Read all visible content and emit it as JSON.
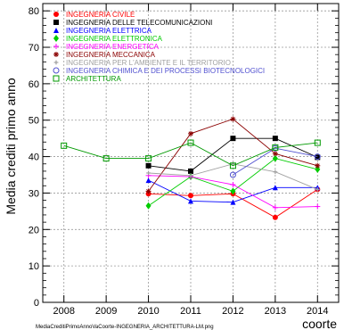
{
  "chart_data": {
    "type": "line",
    "title": "",
    "xlabel": "coorte",
    "ylabel": "Media crediti primo anno",
    "xlim": [
      2007.5,
      2014.5
    ],
    "ylim": [
      0,
      82
    ],
    "x_ticks": [
      2008,
      2009,
      2010,
      2011,
      2012,
      2013,
      2014
    ],
    "y_ticks": [
      0,
      10,
      20,
      30,
      40,
      50,
      60,
      70,
      80
    ],
    "grid": true,
    "legend_position": "top-left",
    "footer": "MediaCreditiPrimoAnnoVaCoorte-INGEGNERIA_ARCHITETTURA-LM.png",
    "series": [
      {
        "name": "INGEGNERIA CIVILE",
        "color": "#ff0000",
        "marker": "circle-filled",
        "x": [
          2010,
          2011,
          2012,
          2013,
          2014
        ],
        "y": [
          29.8,
          29.3,
          29.8,
          23.3,
          31.0
        ]
      },
      {
        "name": "INGEGNERIA DELLE TELECOMUNICAZIONI",
        "color": "#000000",
        "marker": "square-filled",
        "x": [
          2010,
          2011,
          2012,
          2013,
          2014
        ],
        "y": [
          37.5,
          36.0,
          45.0,
          45.0,
          39.8
        ]
      },
      {
        "name": "INGEGNERIA ELETTRICA",
        "color": "#0000ff",
        "marker": "triangle-up",
        "x": [
          2010,
          2011,
          2012,
          2013,
          2014
        ],
        "y": [
          33.5,
          27.8,
          27.5,
          31.5,
          31.5
        ]
      },
      {
        "name": "INGEGNERIA ELETTRONICA",
        "color": "#00cc00",
        "marker": "diamond",
        "x": [
          2010,
          2011,
          2012,
          2013,
          2014
        ],
        "y": [
          26.5,
          34.5,
          30.5,
          39.5,
          36.5
        ]
      },
      {
        "name": "INGEGNERIA ENERGETICA",
        "color": "#ff00ff",
        "marker": "plus",
        "x": [
          2010,
          2011,
          2012,
          2013,
          2014
        ],
        "y": [
          34.8,
          34.5,
          32.3,
          26.0,
          26.3
        ]
      },
      {
        "name": "INGEGNERIA MECCANICA",
        "color": "#8b0000",
        "marker": "star",
        "x": [
          2010,
          2011,
          2012,
          2013,
          2014
        ],
        "y": [
          30.5,
          46.3,
          50.3,
          40.8,
          37.5
        ]
      },
      {
        "name": "INGEGNERIA PER L'AMBIENTE E IL TERRITORIO",
        "color": "#a0a0a0",
        "marker": "cross",
        "x": [
          2010,
          2011,
          2012,
          2013,
          2014
        ],
        "y": [
          35.5,
          34.8,
          38.0,
          35.8,
          31.0
        ]
      },
      {
        "name": "INGEGNERIA CHIMICA E DEI PROCESSI BIOTECNOLOGICI",
        "color": "#5050d0",
        "marker": "circle-open",
        "x": [
          2012,
          2013,
          2014
        ],
        "y": [
          35.0,
          42.3,
          40.0
        ]
      },
      {
        "name": "ARCHITETTURA",
        "color": "#009900",
        "marker": "square-open",
        "x": [
          2008,
          2009,
          2010,
          2011,
          2012,
          2013,
          2014
        ],
        "y": [
          43.0,
          39.5,
          39.5,
          43.8,
          37.5,
          42.5,
          43.8
        ]
      }
    ]
  }
}
